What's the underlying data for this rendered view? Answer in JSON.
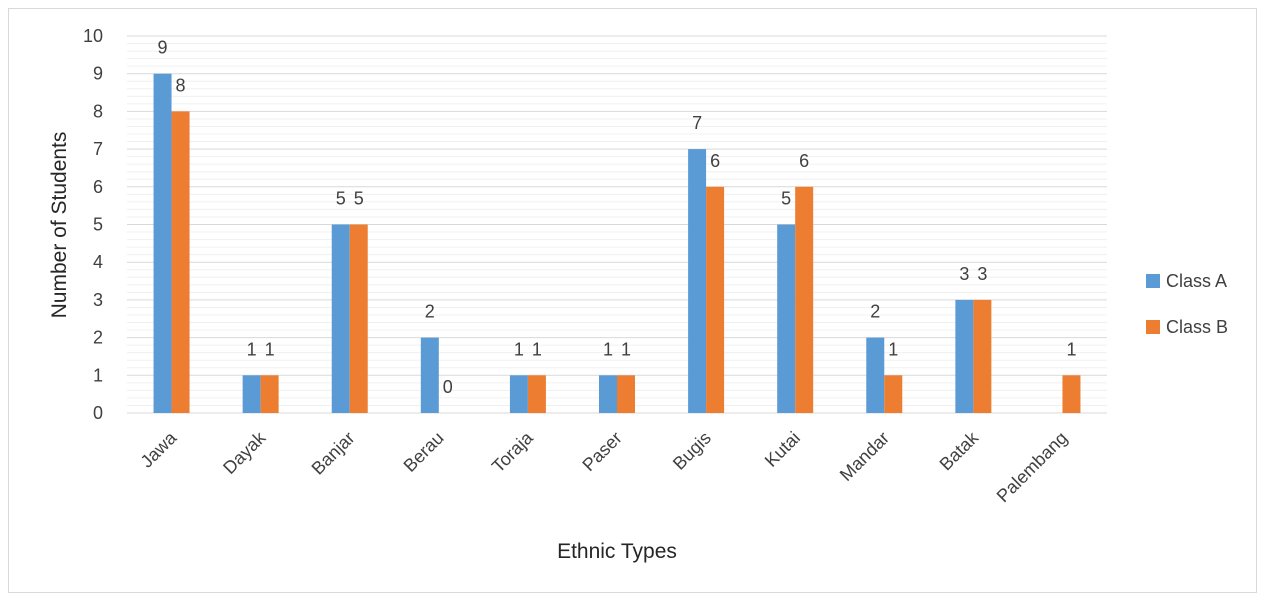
{
  "chart_data": {
    "type": "bar",
    "title": "",
    "xlabel": "Ethnic Types",
    "ylabel": "Number of Students",
    "ylim": [
      0,
      10
    ],
    "yticks": [
      0,
      1,
      2,
      3,
      4,
      5,
      6,
      7,
      8,
      9,
      10
    ],
    "grid": true,
    "legend_position": "right",
    "categories": [
      "Jawa",
      "Dayak",
      "Banjar",
      "Berau",
      "Toraja",
      "Paser",
      "Bugis",
      "Kutai",
      "Mandar",
      "Batak",
      "Palembang"
    ],
    "series": [
      {
        "name": "Class A",
        "color": "#5b9bd5",
        "values": [
          9,
          1,
          5,
          2,
          1,
          1,
          7,
          5,
          2,
          3,
          null
        ]
      },
      {
        "name": "Class B",
        "color": "#ed7d31",
        "values": [
          8,
          1,
          5,
          0,
          1,
          1,
          6,
          6,
          1,
          3,
          1
        ]
      }
    ]
  }
}
